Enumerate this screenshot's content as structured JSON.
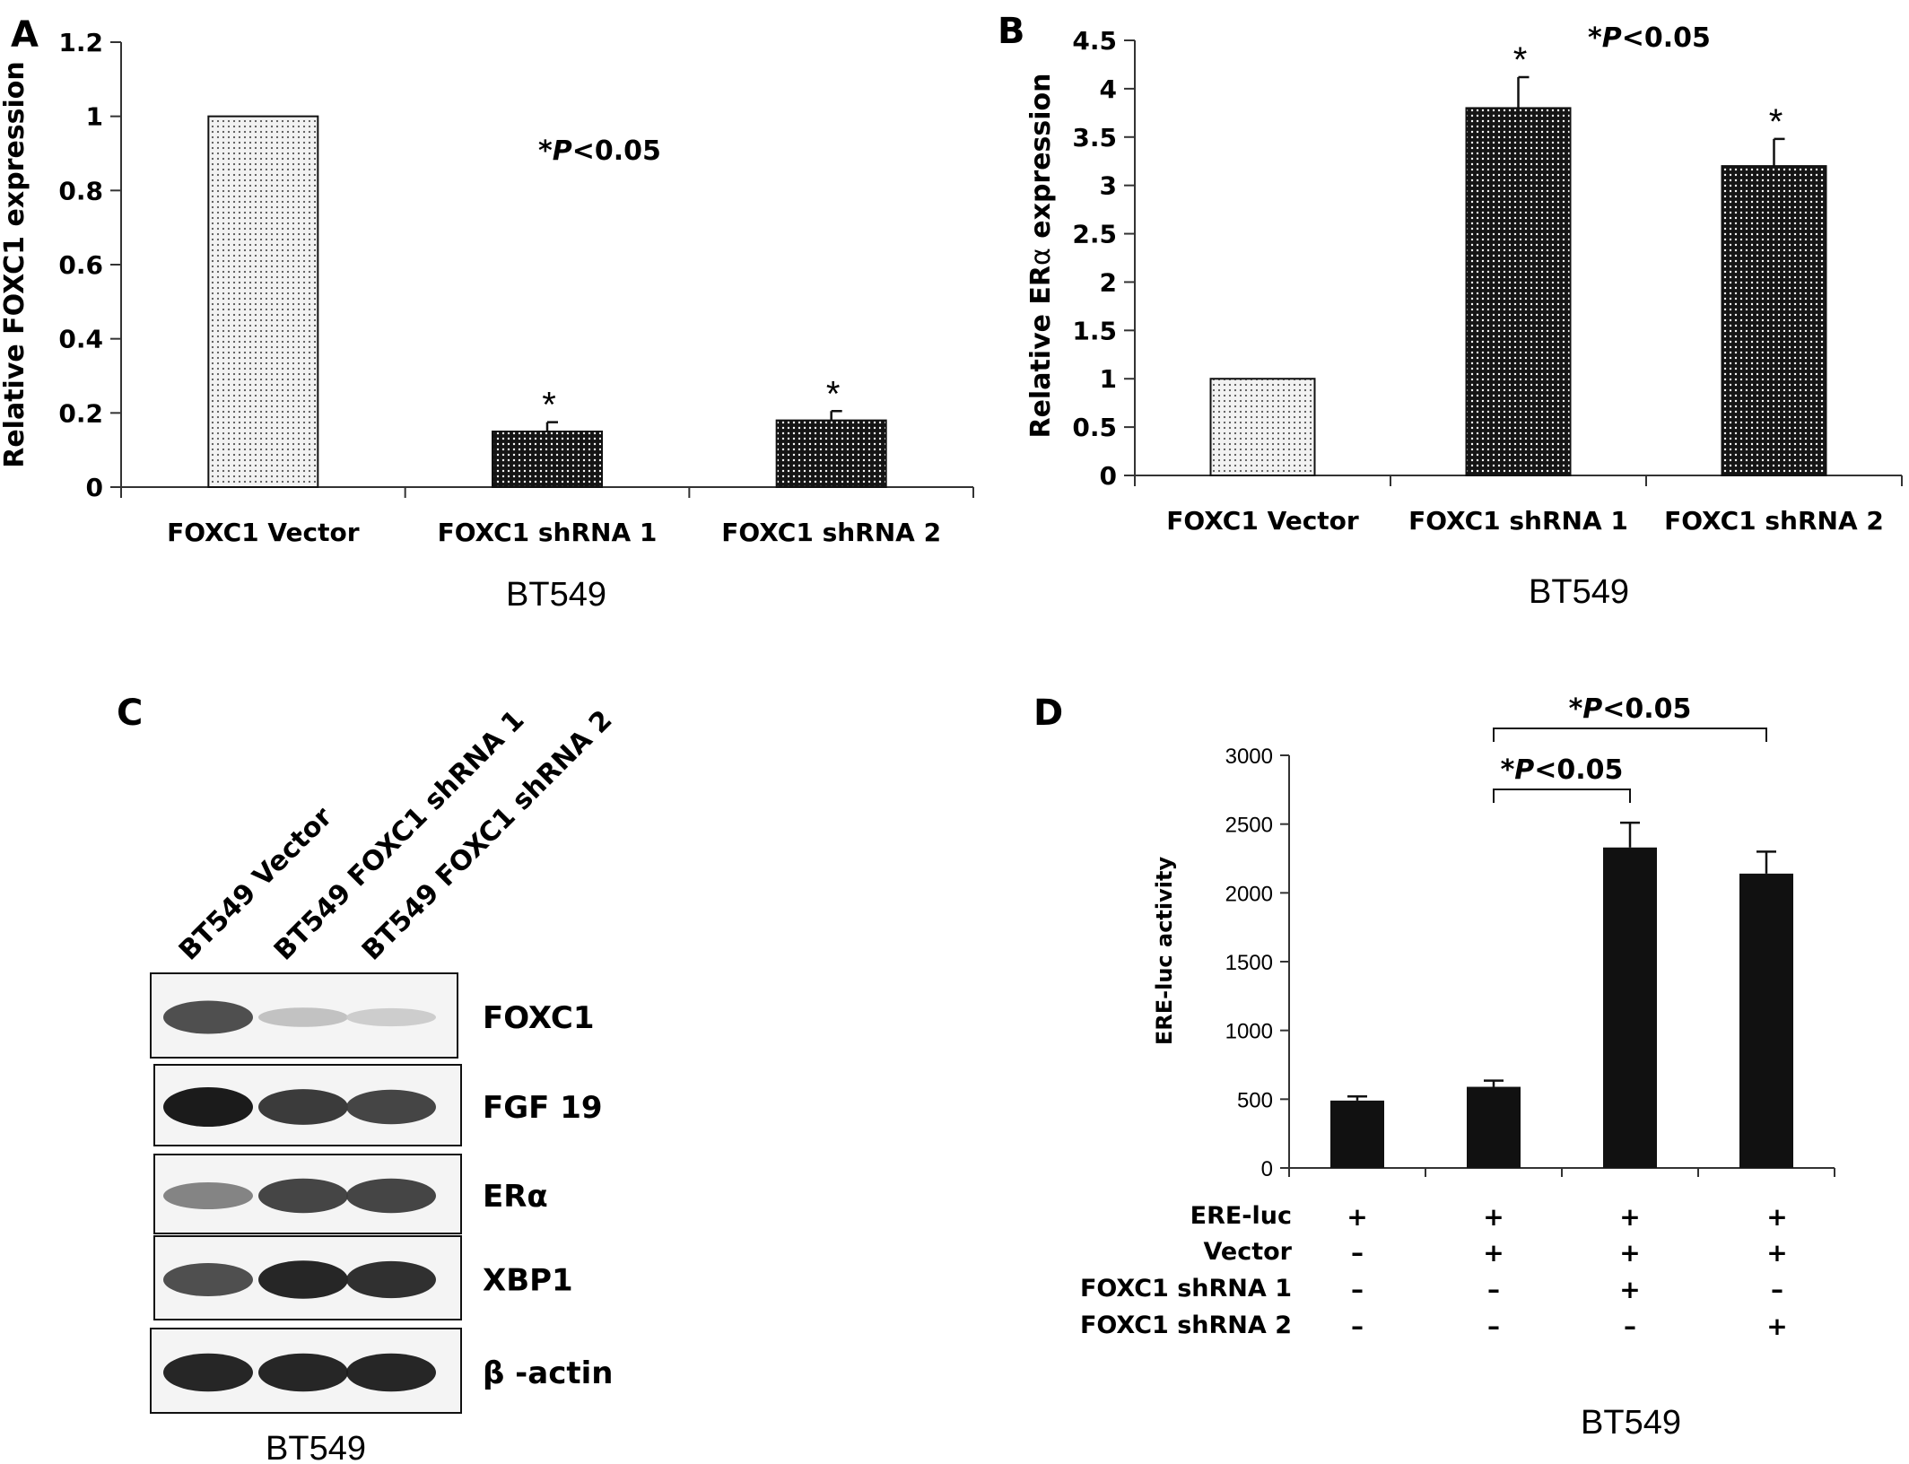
{
  "colors": {
    "dark_bar": "#1a1a1a",
    "light_bar": "#e6e6e6",
    "axis": "#333333",
    "text": "#1a1a1a"
  },
  "panels": {
    "A": {
      "label": "A"
    },
    "B": {
      "label": "B"
    },
    "C": {
      "label": "C",
      "caption": "BT549",
      "lanes": [
        "BT549 Vector",
        "BT549 FOXC1 shRNA 1",
        "BT549 FOXC1 shRNA 2"
      ],
      "blots": [
        {
          "label": "FOXC1",
          "intensity": [
            0.75,
            0.2,
            0.15
          ]
        },
        {
          "label": "FGF 19",
          "intensity": [
            1.0,
            0.85,
            0.8
          ]
        },
        {
          "label": "ERα",
          "intensity": [
            0.5,
            0.8,
            0.8
          ]
        },
        {
          "label": "XBP1",
          "intensity": [
            0.75,
            0.95,
            0.9
          ]
        },
        {
          "label": "β -actin",
          "intensity": [
            0.95,
            0.95,
            0.95
          ]
        }
      ]
    },
    "D": {
      "label": "D"
    }
  },
  "chart_data": [
    {
      "panel": "A",
      "type": "bar",
      "categories": [
        "FOXC1 Vector",
        "FOXC1 shRNA 1",
        "FOXC1 shRNA 2"
      ],
      "values": [
        1.0,
        0.15,
        0.18
      ],
      "errors": [
        0,
        0.025,
        0.025
      ],
      "significance": [
        "",
        "*",
        "*"
      ],
      "bar_style": [
        "light",
        "dark",
        "dark"
      ],
      "ylabel": "Relative FOXC1  expression",
      "xlabel": "BT549",
      "ylim": [
        0,
        1.2
      ],
      "yticks": [
        "0",
        "0.2",
        "0.4",
        "0.6",
        "0.8",
        "1",
        "1.2"
      ],
      "annotation_prefix": "*",
      "annotation_p": "P",
      "annotation_rest": "<0.05"
    },
    {
      "panel": "B",
      "type": "bar",
      "categories": [
        "FOXC1 Vector",
        "FOXC1 shRNA 1",
        "FOXC1 shRNA 2"
      ],
      "values": [
        1.0,
        3.8,
        3.2
      ],
      "errors": [
        0,
        0.32,
        0.28
      ],
      "significance": [
        "",
        "*",
        "*"
      ],
      "bar_style": [
        "light",
        "dark",
        "dark"
      ],
      "ylabel_part1": "Relative ER",
      "ylabel_greek": "α",
      "ylabel_part2": " expression",
      "xlabel": "BT549",
      "ylim": [
        0,
        4.5
      ],
      "yticks": [
        "0",
        "0.5",
        "1",
        "1.5",
        "2",
        "2.5",
        "3",
        "3.5",
        "4",
        "4.5"
      ],
      "annotation_prefix": "*",
      "annotation_p": "P",
      "annotation_rest": "<0.05"
    },
    {
      "panel": "D",
      "type": "bar",
      "values": [
        490,
        590,
        2330,
        2140
      ],
      "errors": [
        30,
        45,
        180,
        160
      ],
      "ylabel": "ERE-luc   activity",
      "xlabel": "BT549",
      "ylim": [
        0,
        3000
      ],
      "yticks": [
        "0",
        "500",
        "1000",
        "1500",
        "2000",
        "2500",
        "3000"
      ],
      "condition_rows": [
        {
          "label": "ERE-luc",
          "marks": [
            "+",
            "+",
            "+",
            "+"
          ]
        },
        {
          "label": "Vector",
          "marks": [
            "–",
            "+",
            "+",
            "+"
          ]
        },
        {
          "label": "FOXC1 shRNA  1",
          "marks": [
            "–",
            "–",
            "+",
            "–"
          ]
        },
        {
          "label": "FOXC1 shRNA  2",
          "marks": [
            "–",
            "–",
            "–",
            "+"
          ]
        }
      ],
      "brackets": [
        {
          "from": 1,
          "to": 2,
          "prefix": "*",
          "p": "P",
          "rest": "<0.05"
        },
        {
          "from": 1,
          "to": 3,
          "prefix": "*",
          "p": "P",
          "rest": "<0.05"
        }
      ]
    }
  ]
}
